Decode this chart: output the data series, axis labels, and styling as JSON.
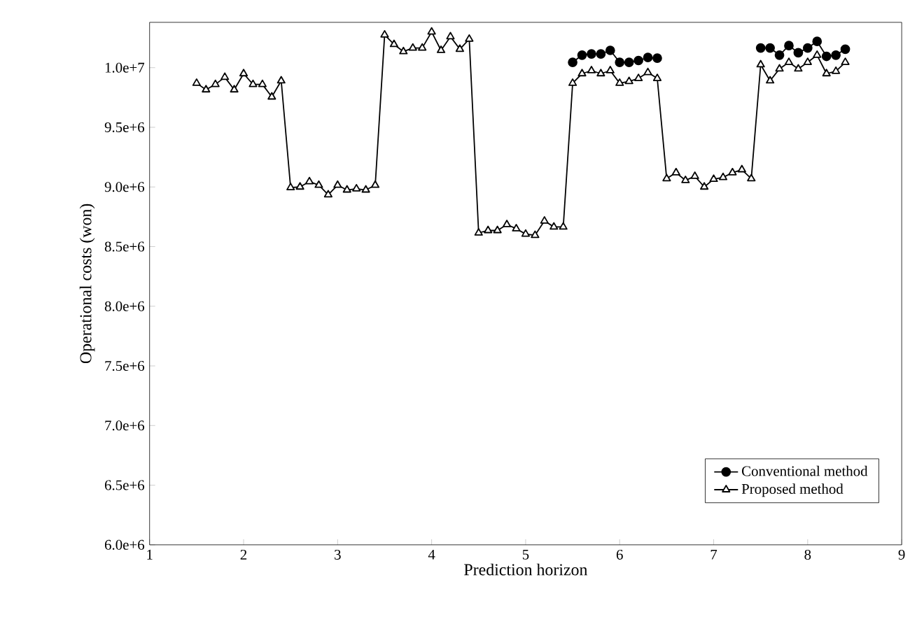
{
  "chart_data": {
    "type": "line",
    "xlabel": "Prediction horizon",
    "ylabel": "Operational costs (won)",
    "x": [
      1.5,
      1.6,
      1.7,
      1.8,
      1.9,
      2.0,
      2.1,
      2.2,
      2.3,
      2.4,
      2.5,
      2.6,
      2.7,
      2.8,
      2.9,
      3.0,
      3.1,
      3.2,
      3.3,
      3.4,
      3.5,
      3.6,
      3.7,
      3.8,
      3.9,
      4.0,
      4.1,
      4.2,
      4.3,
      4.4,
      4.5,
      4.6,
      4.7,
      4.8,
      4.9,
      5.0,
      5.1,
      5.2,
      5.3,
      5.4,
      5.5,
      5.6,
      5.7,
      5.8,
      5.9,
      6.0,
      6.1,
      6.2,
      6.3,
      6.4,
      6.5,
      6.6,
      6.7,
      6.8,
      6.9,
      7.0,
      7.1,
      7.2,
      7.3,
      7.4,
      7.5,
      7.6,
      7.7,
      7.8,
      7.9,
      8.0,
      8.1,
      8.2,
      8.3,
      8.4
    ],
    "series": [
      {
        "name": "Conventional method",
        "color": "#000000",
        "marker": "circle",
        "values": [
          null,
          null,
          null,
          null,
          null,
          null,
          null,
          null,
          null,
          null,
          null,
          null,
          null,
          null,
          null,
          null,
          null,
          null,
          null,
          null,
          null,
          null,
          null,
          null,
          null,
          null,
          null,
          null,
          null,
          null,
          null,
          null,
          null,
          null,
          null,
          null,
          null,
          null,
          null,
          null,
          10045000,
          10105000,
          10115000,
          10115000,
          10145000,
          10045000,
          10045000,
          10060000,
          10085000,
          10080000,
          null,
          null,
          null,
          null,
          null,
          null,
          null,
          null,
          null,
          null,
          10165000,
          10165000,
          10105000,
          10185000,
          10125000,
          10165000,
          10220000,
          10095000,
          10105000,
          10155000
        ]
      },
      {
        "name": "Proposed method",
        "color": "#000000",
        "marker": "triangle",
        "values": [
          9870000,
          9815000,
          9860000,
          9920000,
          9815000,
          9950000,
          9860000,
          9860000,
          9755000,
          9890000,
          8995000,
          9000000,
          9045000,
          9015000,
          8935000,
          9015000,
          8975000,
          8985000,
          8975000,
          9015000,
          10275000,
          10195000,
          10135000,
          10165000,
          10165000,
          10300000,
          10145000,
          10260000,
          10155000,
          10240000,
          8615000,
          8635000,
          8635000,
          8685000,
          8650000,
          8605000,
          8595000,
          8715000,
          8665000,
          8665000,
          9870000,
          9950000,
          9975000,
          9950000,
          9975000,
          9870000,
          9885000,
          9910000,
          9960000,
          9910000,
          9070000,
          9120000,
          9055000,
          9090000,
          9000000,
          9065000,
          9080000,
          9120000,
          9145000,
          9070000,
          10025000,
          9890000,
          9990000,
          10045000,
          9990000,
          10045000,
          10105000,
          9950000,
          9970000,
          10045000
        ]
      }
    ],
    "xlim": [
      1,
      9
    ],
    "xticks": [
      1,
      2,
      3,
      4,
      5,
      6,
      7,
      8,
      9
    ],
    "ylim": [
      6000000,
      10380000
    ],
    "yticks": [
      {
        "value": 6000000,
        "label": "6.0e+6"
      },
      {
        "value": 6500000,
        "label": "6.5e+6"
      },
      {
        "value": 7000000,
        "label": "7.0e+6"
      },
      {
        "value": 7500000,
        "label": "7.5e+6"
      },
      {
        "value": 8000000,
        "label": "8.0e+6"
      },
      {
        "value": 8500000,
        "label": "8.5e+6"
      },
      {
        "value": 9000000,
        "label": "9.0e+6"
      },
      {
        "value": 9500000,
        "label": "9.5e+6"
      },
      {
        "value": 10000000,
        "label": "1.0e+7"
      }
    ],
    "grid": false,
    "legend": "bottom right",
    "line_style": "solid"
  }
}
